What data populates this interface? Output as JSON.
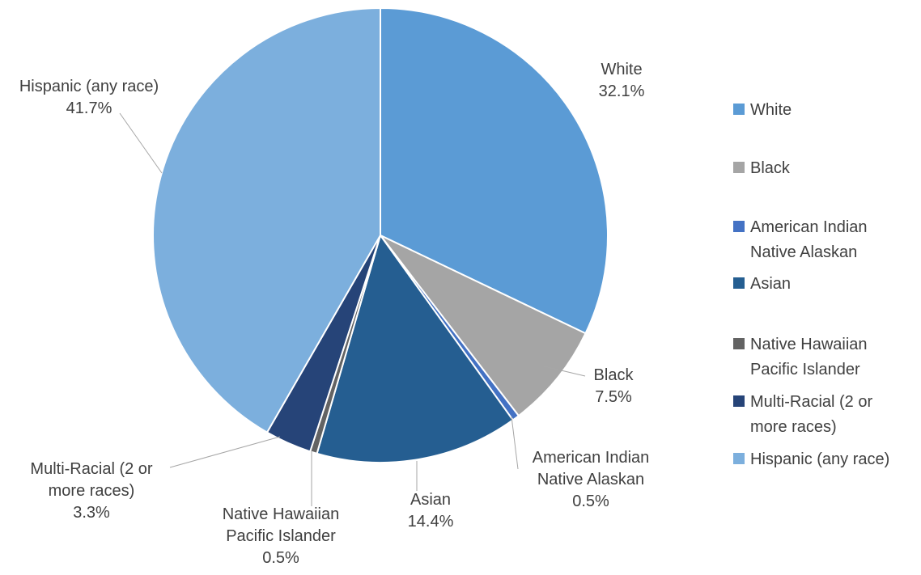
{
  "chart_data": {
    "type": "pie",
    "title": "",
    "legend_position": "right",
    "slices": [
      {
        "name": "White",
        "legend_lines": [
          "White"
        ],
        "label_lines": [
          "White",
          "32.1%"
        ],
        "value": 32.1,
        "label": "32.1%",
        "color": "#5b9bd5"
      },
      {
        "name": "Black",
        "legend_lines": [
          "Black"
        ],
        "label_lines": [
          "Black",
          "7.5%"
        ],
        "value": 7.5,
        "label": "7.5%",
        "color": "#a5a5a5"
      },
      {
        "name": "American Indian Native Alaskan",
        "legend_lines": [
          "American Indian",
          "Native Alaskan"
        ],
        "label_lines": [
          "American Indian",
          "Native Alaskan",
          "0.5%"
        ],
        "value": 0.5,
        "label": "0.5%",
        "color": "#4472c4"
      },
      {
        "name": "Asian",
        "legend_lines": [
          "Asian"
        ],
        "label_lines": [
          "Asian",
          "14.4%"
        ],
        "value": 14.4,
        "label": "14.4%",
        "color": "#255e91"
      },
      {
        "name": "Native Hawaiian Pacific Islander",
        "legend_lines": [
          "Native Hawaiian",
          "Pacific Islander"
        ],
        "label_lines": [
          "Native Hawaiian",
          "Pacific Islander",
          "0.5%"
        ],
        "value": 0.5,
        "label": "0.5%",
        "color": "#636363"
      },
      {
        "name": "Multi-Racial (2 or more races)",
        "legend_lines": [
          "Multi-Racial (2 or",
          "more races)"
        ],
        "label_lines": [
          "Multi-Racial (2 or",
          "more races)",
          "3.3%"
        ],
        "value": 3.3,
        "label": "3.3%",
        "color": "#264478"
      },
      {
        "name": "Hispanic (any race)",
        "legend_lines": [
          "Hispanic (any race)"
        ],
        "label_lines": [
          "Hispanic (any race)",
          "41.7%"
        ],
        "value": 41.7,
        "label": "41.7%",
        "color": "#7cafdd"
      }
    ]
  }
}
